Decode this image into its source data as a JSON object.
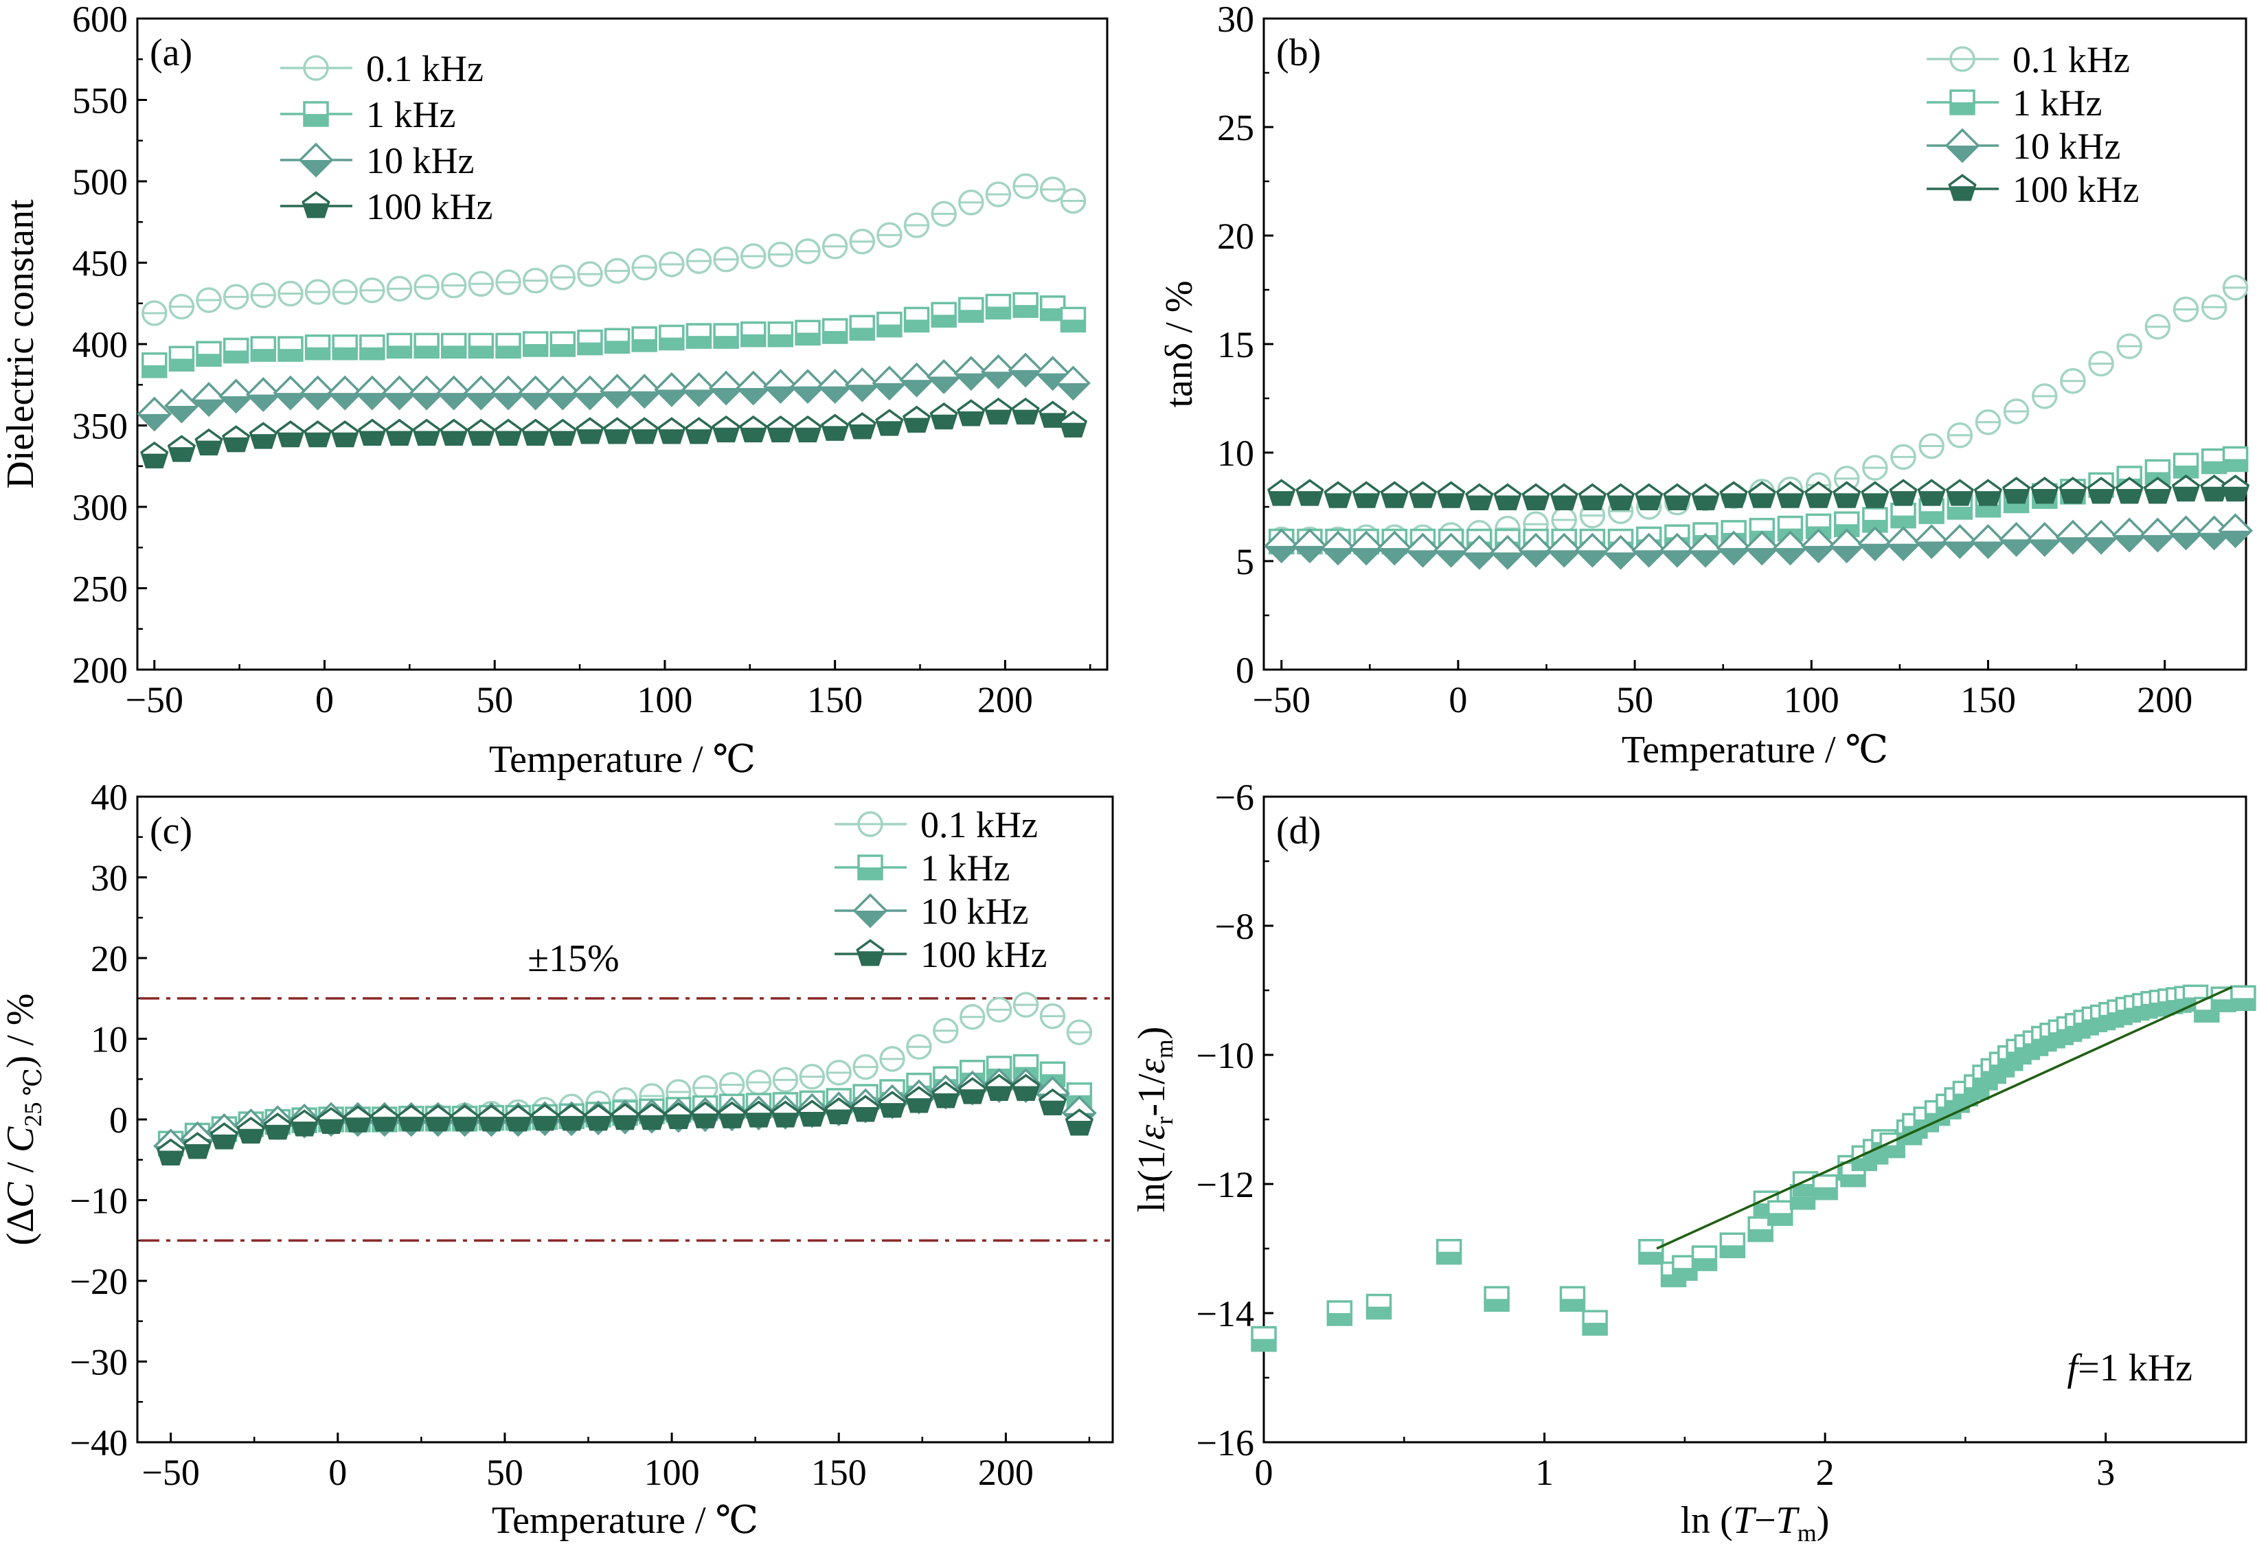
{
  "colors": {
    "c01": "#a2d4c2",
    "c1": "#6cc0a4",
    "c10": "#5f9e92",
    "c100": "#2c6b54",
    "limit": "#8b2a2a",
    "fit": "#1f5f12"
  },
  "chart_data": [
    {
      "type": "scatter",
      "label": "(a)",
      "xlabel": "Temperature / ℃",
      "ylabel": "Dielectric constant",
      "xlim": [
        -55,
        230
      ],
      "ylim": [
        200,
        600
      ],
      "xticks": [
        -50,
        0,
        50,
        100,
        150,
        200
      ],
      "yticks": [
        200,
        250,
        300,
        350,
        400,
        450,
        500,
        550,
        600
      ],
      "legend_position": "top-left",
      "x": [
        -50,
        -42,
        -34,
        -26,
        -18,
        -10,
        -2,
        6,
        14,
        22,
        30,
        38,
        46,
        54,
        62,
        70,
        78,
        86,
        94,
        102,
        110,
        118,
        126,
        134,
        142,
        150,
        158,
        166,
        174,
        182,
        190,
        198,
        206,
        214,
        220
      ],
      "series": [
        {
          "name": "0.1 kHz",
          "marker": "circle",
          "color": "c01",
          "values": [
            419,
            423,
            427,
            429,
            430,
            431,
            432,
            432,
            433,
            434,
            435,
            436,
            437,
            438,
            439,
            441,
            443,
            445,
            447,
            449,
            451,
            452,
            454,
            455,
            457,
            460,
            463,
            467,
            473,
            480,
            487,
            492,
            497,
            495,
            488
          ]
        },
        {
          "name": "1 kHz",
          "marker": "square",
          "color": "c1",
          "values": [
            387,
            391,
            394,
            396,
            397,
            397,
            398,
            398,
            398,
            399,
            399,
            399,
            399,
            399,
            400,
            400,
            401,
            402,
            403,
            404,
            405,
            405,
            406,
            406,
            407,
            408,
            410,
            412,
            415,
            418,
            421,
            423,
            424,
            422,
            415
          ]
        },
        {
          "name": "10 kHz",
          "marker": "diamond",
          "color": "c10",
          "values": [
            357,
            362,
            366,
            368,
            369,
            370,
            370,
            370,
            370,
            370,
            370,
            370,
            370,
            370,
            370,
            370,
            370,
            371,
            371,
            372,
            372,
            373,
            373,
            374,
            374,
            374,
            375,
            376,
            378,
            380,
            382,
            383,
            384,
            382,
            376
          ]
        },
        {
          "name": "100 kHz",
          "marker": "pentagon",
          "color": "c100",
          "values": [
            331,
            335,
            339,
            341,
            343,
            344,
            344,
            344,
            345,
            345,
            345,
            345,
            345,
            345,
            345,
            345,
            346,
            346,
            346,
            346,
            346,
            347,
            347,
            347,
            347,
            348,
            349,
            351,
            353,
            355,
            357,
            358,
            358,
            356,
            350
          ]
        }
      ]
    },
    {
      "type": "scatter",
      "label": "(b)",
      "xlabel": "Temperature / ℃",
      "ylabel": "tanδ / %",
      "xlim": [
        -55,
        223
      ],
      "ylim": [
        0,
        30
      ],
      "xticks": [
        -50,
        0,
        50,
        100,
        150,
        200
      ],
      "yticks": [
        0,
        5,
        10,
        15,
        20,
        25,
        30
      ],
      "legend_position": "top-right",
      "x": [
        -50,
        -42,
        -34,
        -26,
        -18,
        -10,
        -2,
        6,
        14,
        22,
        30,
        38,
        46,
        54,
        62,
        70,
        78,
        86,
        94,
        102,
        110,
        118,
        126,
        134,
        142,
        150,
        158,
        166,
        174,
        182,
        190,
        198,
        206,
        214,
        220
      ],
      "series": [
        {
          "name": "0.1 kHz",
          "marker": "circle",
          "color": "c01",
          "values": [
            6.0,
            6.0,
            6.0,
            6.1,
            6.1,
            6.1,
            6.2,
            6.3,
            6.5,
            6.7,
            6.9,
            7.1,
            7.3,
            7.5,
            7.7,
            7.9,
            8.0,
            8.2,
            8.3,
            8.5,
            8.8,
            9.3,
            9.8,
            10.3,
            10.8,
            11.4,
            11.9,
            12.6,
            13.3,
            14.1,
            14.9,
            15.8,
            16.6,
            16.7,
            17.6
          ]
        },
        {
          "name": "1 kHz",
          "marker": "square",
          "color": "c1",
          "values": [
            5.9,
            5.9,
            5.9,
            5.9,
            5.9,
            5.9,
            5.9,
            5.9,
            5.9,
            5.9,
            5.9,
            5.9,
            5.9,
            6.0,
            6.1,
            6.2,
            6.3,
            6.4,
            6.5,
            6.6,
            6.7,
            6.9,
            7.1,
            7.3,
            7.5,
            7.6,
            7.8,
            8.0,
            8.2,
            8.5,
            8.8,
            9.1,
            9.4,
            9.6,
            9.7
          ]
        },
        {
          "name": "10 kHz",
          "marker": "diamond",
          "color": "c10",
          "values": [
            5.7,
            5.7,
            5.6,
            5.6,
            5.6,
            5.5,
            5.5,
            5.4,
            5.4,
            5.5,
            5.5,
            5.5,
            5.4,
            5.5,
            5.5,
            5.5,
            5.6,
            5.6,
            5.6,
            5.7,
            5.7,
            5.8,
            5.8,
            5.9,
            5.9,
            5.9,
            6.0,
            6.0,
            6.1,
            6.1,
            6.2,
            6.2,
            6.3,
            6.3,
            6.4
          ]
        },
        {
          "name": "100 kHz",
          "marker": "pentagon",
          "color": "c100",
          "values": [
            8.1,
            8.1,
            8.0,
            8.0,
            8.0,
            8.0,
            8.0,
            7.9,
            7.9,
            7.9,
            7.9,
            7.9,
            7.9,
            7.9,
            7.9,
            7.9,
            8.0,
            8.0,
            8.0,
            8.0,
            8.0,
            8.0,
            8.1,
            8.1,
            8.1,
            8.1,
            8.2,
            8.2,
            8.2,
            8.2,
            8.2,
            8.2,
            8.3,
            8.3,
            8.3
          ]
        }
      ]
    },
    {
      "type": "scatter",
      "label": "(c)",
      "xlabel": "Temperature / ℃",
      "ylabel_parts": [
        "(Δ",
        "C",
        " / ",
        "C",
        "25 ℃",
        ") / %"
      ],
      "xlim": [
        -60,
        232
      ],
      "ylim": [
        -40,
        40
      ],
      "xticks": [
        -50,
        0,
        50,
        100,
        150,
        200
      ],
      "yticks": [
        -40,
        -30,
        -20,
        -10,
        0,
        10,
        20,
        30,
        40
      ],
      "legend_position": "top-right",
      "annotation": "±15%",
      "limit_lines": [
        15,
        -15
      ],
      "x": [
        -50,
        -42,
        -34,
        -26,
        -18,
        -10,
        -2,
        6,
        14,
        22,
        30,
        38,
        46,
        54,
        62,
        70,
        78,
        86,
        94,
        102,
        110,
        118,
        126,
        134,
        142,
        150,
        158,
        166,
        174,
        182,
        190,
        198,
        206,
        214,
        222
      ],
      "series": [
        {
          "name": "0.1 kHz",
          "marker": "circle",
          "color": "c01",
          "values": [
            -3.2,
            -2.3,
            -1.5,
            -1.0,
            -0.7,
            -0.5,
            -0.3,
            -0.2,
            0.0,
            0.1,
            0.3,
            0.5,
            0.7,
            0.9,
            1.2,
            1.6,
            2.0,
            2.4,
            2.9,
            3.4,
            3.9,
            4.3,
            4.6,
            4.9,
            5.3,
            5.8,
            6.5,
            7.5,
            9.0,
            11.0,
            12.7,
            13.6,
            14.2,
            12.8,
            10.8
          ]
        },
        {
          "name": "1 kHz",
          "marker": "square",
          "color": "c1",
          "values": [
            -3.0,
            -2.0,
            -1.2,
            -0.6,
            -0.3,
            -0.1,
            0.0,
            0.0,
            0.0,
            0.1,
            0.1,
            0.1,
            0.2,
            0.2,
            0.3,
            0.4,
            0.6,
            0.8,
            1.0,
            1.2,
            1.4,
            1.6,
            1.7,
            1.8,
            2.0,
            2.3,
            2.8,
            3.4,
            4.2,
            5.0,
            5.8,
            6.3,
            6.5,
            5.6,
            3.0
          ]
        },
        {
          "name": "10 kHz",
          "marker": "diamond",
          "color": "c10",
          "values": [
            -3.3,
            -2.4,
            -1.4,
            -0.8,
            -0.4,
            -0.2,
            0.0,
            0.0,
            0.0,
            0.0,
            0.0,
            0.0,
            0.0,
            0.0,
            0.1,
            0.1,
            0.2,
            0.3,
            0.4,
            0.5,
            0.6,
            0.7,
            0.8,
            0.9,
            1.1,
            1.3,
            1.7,
            2.2,
            2.8,
            3.4,
            3.9,
            4.2,
            4.2,
            3.2,
            0.8
          ]
        },
        {
          "name": "100 kHz",
          "marker": "pentagon",
          "color": "c100",
          "values": [
            -4.2,
            -3.4,
            -2.2,
            -1.5,
            -1.0,
            -0.6,
            -0.3,
            -0.1,
            0.0,
            0.0,
            0.0,
            0.0,
            0.0,
            0.0,
            0.1,
            0.1,
            0.1,
            0.2,
            0.2,
            0.3,
            0.4,
            0.4,
            0.5,
            0.5,
            0.6,
            0.9,
            1.2,
            1.7,
            2.3,
            2.9,
            3.4,
            3.8,
            3.8,
            2.0,
            -0.5
          ]
        }
      ]
    },
    {
      "type": "scatter",
      "label": "(d)",
      "xlabel_parts": [
        "ln (",
        "T",
        "−",
        "T",
        "m",
        ")"
      ],
      "ylabel_parts": [
        "ln(1/",
        "ε",
        "r",
        "-1/",
        "ε",
        "m",
        ")"
      ],
      "xlim": [
        0,
        3.5
      ],
      "ylim": [
        -16,
        -6
      ],
      "xticks": [
        0,
        1,
        2,
        3
      ],
      "yticks": [
        -16,
        -14,
        -12,
        -10,
        -8,
        -6
      ],
      "annotation_parts": [
        "f",
        "=1 kHz"
      ],
      "fit_line": {
        "x": [
          1.4,
          3.45
        ],
        "y": [
          -13.0,
          -8.95
        ]
      },
      "points": {
        "marker": "square",
        "color": "c1",
        "x": [
          0.0,
          0.27,
          0.41,
          0.66,
          0.83,
          1.1,
          1.18,
          1.38,
          1.46,
          1.5,
          1.57,
          1.67,
          1.77,
          1.79,
          1.84,
          1.92,
          1.93,
          2.0,
          2.09,
          2.1,
          2.14,
          2.18,
          2.21,
          2.24,
          2.3,
          2.32,
          2.36,
          2.4,
          2.44,
          2.47,
          2.5,
          2.54,
          2.57,
          2.6,
          2.63,
          2.66,
          2.69,
          2.72,
          2.75,
          2.78,
          2.81,
          2.84,
          2.87,
          2.9,
          2.93,
          2.96,
          2.99,
          3.02,
          3.05,
          3.08,
          3.11,
          3.14,
          3.17,
          3.2,
          3.23,
          3.26,
          3.29,
          3.32,
          3.36,
          3.42,
          3.49
        ],
        "y": [
          -14.4,
          -14.0,
          -13.9,
          -13.05,
          -13.78,
          -13.78,
          -14.15,
          -13.05,
          -13.4,
          -13.3,
          -13.15,
          -12.95,
          -12.7,
          -12.3,
          -12.45,
          -12.2,
          -12.0,
          -12.05,
          -11.75,
          -11.85,
          -11.6,
          -11.5,
          -11.35,
          -11.4,
          -11.2,
          -11.1,
          -11.0,
          -10.9,
          -10.8,
          -10.7,
          -10.6,
          -10.5,
          -10.35,
          -10.25,
          -10.15,
          -10.05,
          -9.95,
          -9.88,
          -9.82,
          -9.75,
          -9.7,
          -9.65,
          -9.6,
          -9.55,
          -9.5,
          -9.45,
          -9.42,
          -9.38,
          -9.34,
          -9.3,
          -9.27,
          -9.24,
          -9.21,
          -9.19,
          -9.17,
          -9.15,
          -9.13,
          -9.11,
          -9.3,
          -9.14,
          -9.12
        ]
      }
    }
  ]
}
